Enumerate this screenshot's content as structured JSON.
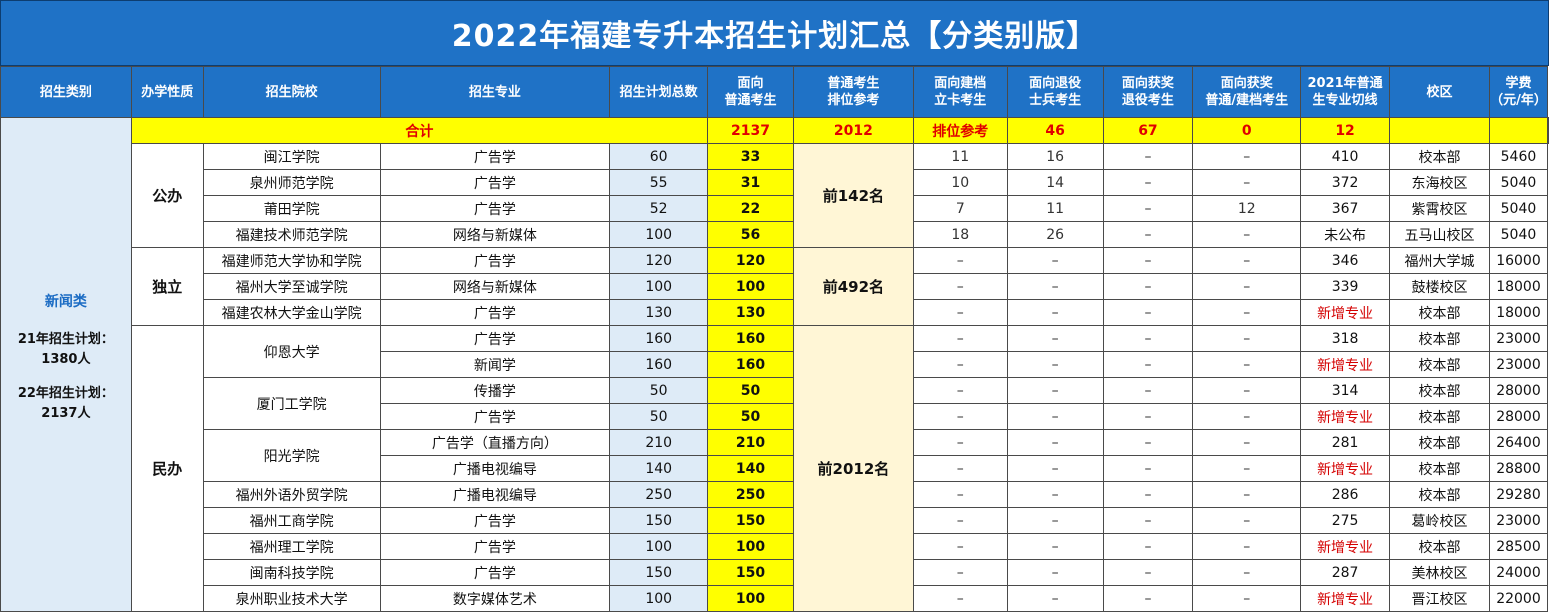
{
  "title": "2022年福建专升本招生计划汇总【分类别版】",
  "headers": [
    "招生类别",
    "办学性质",
    "招生院校",
    "招生专业",
    "招生计划总数",
    "面向\n普通考生",
    "普通考生\n排位参考",
    "面向建档\n立卡考生",
    "面向退役\n士兵考生",
    "面向获奖\n退役考生",
    "面向获奖\n普通/建档考生",
    "2021年普通\n生专业切线",
    "校区",
    "学费\n（元/年）"
  ],
  "category": {
    "name": "新闻类",
    "note_2021": "21年招生计划：1380人",
    "note_2022": "22年招生计划：2137人"
  },
  "totals": {
    "label": "合计",
    "plan_total": "2137",
    "general": "2012",
    "rank": "排位参考",
    "filed": "46",
    "veteran": "67",
    "award_vet": "0",
    "award_gen": "12",
    "cutoff": "",
    "campus": "",
    "fee": ""
  },
  "groups": [
    {
      "nature": "公办",
      "rank": "前142名"
    },
    {
      "nature": "独立",
      "rank": "前492名"
    },
    {
      "nature": "民办",
      "rank": "前2012名"
    }
  ],
  "schools": {
    "s0": "闽江学院",
    "s1": "泉州师范学院",
    "s2": "莆田学院",
    "s3": "福建技术师范学院",
    "s4": "福建师范大学协和学院",
    "s5": "福州大学至诚学院",
    "s6": "福建农林大学金山学院",
    "s7": "仰恩大学",
    "s8": "厦门工学院",
    "s9": "阳光学院",
    "s10": "福州外语外贸学院",
    "s11": "福州工商学院",
    "s12": "福州理工学院",
    "s13": "闽南科技学院",
    "s14": "泉州职业技术大学"
  },
  "rows": [
    {
      "major": "广告学",
      "total": "60",
      "general": "33",
      "filed": "11",
      "veteran": "16",
      "award_vet": "–",
      "award_gen": "–",
      "cutoff": "410",
      "campus": "校本部",
      "fee": "5460"
    },
    {
      "major": "广告学",
      "total": "55",
      "general": "31",
      "filed": "10",
      "veteran": "14",
      "award_vet": "–",
      "award_gen": "–",
      "cutoff": "372",
      "campus": "东海校区",
      "fee": "5040"
    },
    {
      "major": "广告学",
      "total": "52",
      "general": "22",
      "filed": "7",
      "veteran": "11",
      "award_vet": "–",
      "award_gen": "12",
      "cutoff": "367",
      "campus": "紫霄校区",
      "fee": "5040"
    },
    {
      "major": "网络与新媒体",
      "total": "100",
      "general": "56",
      "filed": "18",
      "veteran": "26",
      "award_vet": "–",
      "award_gen": "–",
      "cutoff": "未公布",
      "campus": "五马山校区",
      "fee": "5040"
    },
    {
      "major": "广告学",
      "total": "120",
      "general": "120",
      "filed": "–",
      "veteran": "–",
      "award_vet": "–",
      "award_gen": "–",
      "cutoff": "346",
      "campus": "福州大学城",
      "fee": "16000"
    },
    {
      "major": "网络与新媒体",
      "total": "100",
      "general": "100",
      "filed": "–",
      "veteran": "–",
      "award_vet": "–",
      "award_gen": "–",
      "cutoff": "339",
      "campus": "鼓楼校区",
      "fee": "18000"
    },
    {
      "major": "广告学",
      "total": "130",
      "general": "130",
      "filed": "–",
      "veteran": "–",
      "award_vet": "–",
      "award_gen": "–",
      "cutoff": "新增专业",
      "campus": "校本部",
      "fee": "18000"
    },
    {
      "major": "广告学",
      "total": "160",
      "general": "160",
      "filed": "–",
      "veteran": "–",
      "award_vet": "–",
      "award_gen": "–",
      "cutoff": "318",
      "campus": "校本部",
      "fee": "23000"
    },
    {
      "major": "新闻学",
      "total": "160",
      "general": "160",
      "filed": "–",
      "veteran": "–",
      "award_vet": "–",
      "award_gen": "–",
      "cutoff": "新增专业",
      "campus": "校本部",
      "fee": "23000"
    },
    {
      "major": "传播学",
      "total": "50",
      "general": "50",
      "filed": "–",
      "veteran": "–",
      "award_vet": "–",
      "award_gen": "–",
      "cutoff": "314",
      "campus": "校本部",
      "fee": "28000"
    },
    {
      "major": "广告学",
      "total": "50",
      "general": "50",
      "filed": "–",
      "veteran": "–",
      "award_vet": "–",
      "award_gen": "–",
      "cutoff": "新增专业",
      "campus": "校本部",
      "fee": "28000"
    },
    {
      "major": "广告学（直播方向）",
      "total": "210",
      "general": "210",
      "filed": "–",
      "veteran": "–",
      "award_vet": "–",
      "award_gen": "–",
      "cutoff": "281",
      "campus": "校本部",
      "fee": "26400"
    },
    {
      "major": "广播电视编导",
      "total": "140",
      "general": "140",
      "filed": "–",
      "veteran": "–",
      "award_vet": "–",
      "award_gen": "–",
      "cutoff": "新增专业",
      "campus": "校本部",
      "fee": "28800"
    },
    {
      "major": "广播电视编导",
      "total": "250",
      "general": "250",
      "filed": "–",
      "veteran": "–",
      "award_vet": "–",
      "award_gen": "–",
      "cutoff": "286",
      "campus": "校本部",
      "fee": "29280"
    },
    {
      "major": "广告学",
      "total": "150",
      "general": "150",
      "filed": "–",
      "veteran": "–",
      "award_vet": "–",
      "award_gen": "–",
      "cutoff": "275",
      "campus": "葛岭校区",
      "fee": "23000"
    },
    {
      "major": "广告学",
      "total": "100",
      "general": "100",
      "filed": "–",
      "veteran": "–",
      "award_vet": "–",
      "award_gen": "–",
      "cutoff": "新增专业",
      "campus": "校本部",
      "fee": "28500"
    },
    {
      "major": "广告学",
      "total": "150",
      "general": "150",
      "filed": "–",
      "veteran": "–",
      "award_vet": "–",
      "award_gen": "–",
      "cutoff": "287",
      "campus": "美林校区",
      "fee": "24000"
    },
    {
      "major": "数字媒体艺术",
      "total": "100",
      "general": "100",
      "filed": "–",
      "veteran": "–",
      "award_vet": "–",
      "award_gen": "–",
      "cutoff": "新增专业",
      "campus": "晋江校区",
      "fee": "22000"
    }
  ],
  "colors": {
    "header_bg": "#1f72c6",
    "total_row_bg": "#ffff00",
    "total_text": "#e00000",
    "new_major": "#d40000",
    "category_bg": "#deebf7"
  }
}
